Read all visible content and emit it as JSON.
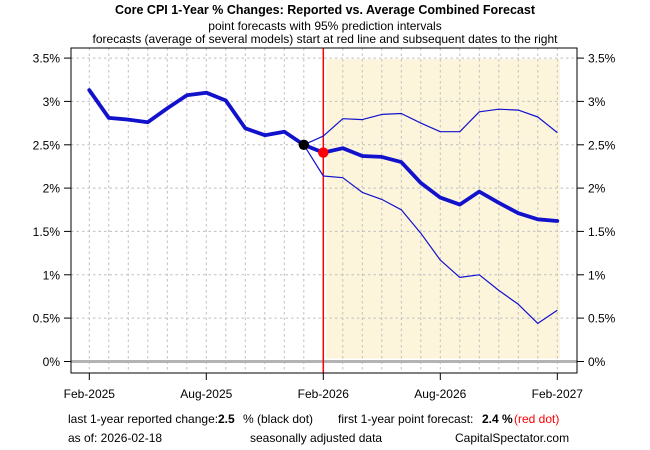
{
  "header": {
    "title": "Core CPI 1-Year % Changes: Reported vs. Average Combined Forecast",
    "subtitle1": "point forecasts with 95% prediction intervals",
    "subtitle2": "forecasts (average of several models) start at red line and subsequent dates to the right"
  },
  "chart_data": {
    "type": "line",
    "title": "Core CPI 1-Year % Changes: Reported vs. Average Combined Forecast",
    "xlabel": "",
    "ylabel": "",
    "ylim": [
      -0.13,
      3.62
    ],
    "grid": true,
    "n_months": 25,
    "x_start_month": "Feb-2025",
    "x_end_month": "Mar-2027-plot-edge",
    "forecast_start_index": 12,
    "x_ticks": [
      {
        "index": 0,
        "label": "Feb-2025"
      },
      {
        "index": 6,
        "label": "Aug-2025"
      },
      {
        "index": 12,
        "label": "Feb-2026"
      },
      {
        "index": 18,
        "label": "Aug-2026"
      },
      {
        "index": 24,
        "label": "Feb-2027"
      }
    ],
    "y_ticks": [
      {
        "value": 0,
        "label": "0%"
      },
      {
        "value": 0.5,
        "label": "0.5%"
      },
      {
        "value": 1,
        "label": "1%"
      },
      {
        "value": 1.5,
        "label": "1.5%"
      },
      {
        "value": 2,
        "label": "2%"
      },
      {
        "value": 2.5,
        "label": "2.5%"
      },
      {
        "value": 3,
        "label": "3%"
      },
      {
        "value": 3.5,
        "label": "3.5%"
      }
    ],
    "series": [
      {
        "name": "reported",
        "thick": true,
        "start_index": 0,
        "values": [
          3.13,
          2.81,
          2.79,
          2.76,
          2.92,
          3.07,
          3.1,
          3.01,
          2.69,
          2.61,
          2.65,
          2.5
        ]
      },
      {
        "name": "forecast",
        "thick": true,
        "start_index": 11,
        "values": [
          2.5,
          2.41,
          2.46,
          2.37,
          2.36,
          2.3,
          2.06,
          1.89,
          1.81,
          1.96,
          1.83,
          1.71,
          1.64,
          1.62
        ]
      },
      {
        "name": "upper-95-band",
        "thick": false,
        "start_index": 11,
        "values": [
          2.5,
          2.6,
          2.8,
          2.79,
          2.85,
          2.86,
          2.75,
          2.65,
          2.65,
          2.88,
          2.91,
          2.9,
          2.82,
          2.64
        ]
      },
      {
        "name": "lower-95-band",
        "thick": false,
        "start_index": 11,
        "values": [
          2.5,
          2.14,
          2.12,
          1.95,
          1.87,
          1.75,
          1.48,
          1.17,
          0.97,
          1.0,
          0.82,
          0.66,
          0.44,
          0.59
        ]
      }
    ],
    "markers": [
      {
        "name": "black-dot-last-reported",
        "x_index": 11,
        "value": 2.5,
        "color": "#000000"
      },
      {
        "name": "red-dot-first-forecast",
        "x_index": 12,
        "value": 2.41,
        "color": "#ff0000"
      }
    ],
    "red_line_x_index": 12,
    "colors": {
      "blue": "#1212cd",
      "red": "#ff0000",
      "forecast_shade": "#fcf5dc",
      "grid": "#bfbfbf",
      "zero_line": "#b3b3b3",
      "border": "#000000"
    }
  },
  "footer": {
    "reported_label": "last 1-year reported change:",
    "reported_value": "2.5",
    "reported_suffix": "% (black dot)",
    "forecast_label": "first 1-year point forecast:",
    "forecast_value": "2.4 %",
    "forecast_suffix": "(red dot)",
    "as_of": "as of:  2026-02-18",
    "adjustment_note": "seasonally adjusted data",
    "source": "CapitalSpectator.com"
  }
}
